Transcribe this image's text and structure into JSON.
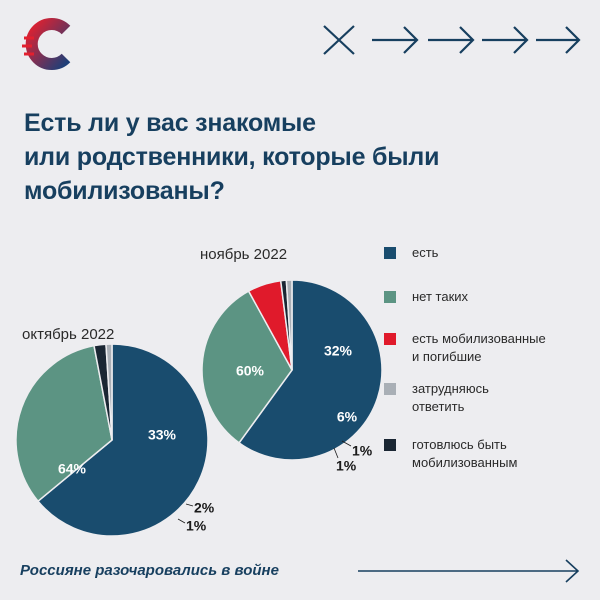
{
  "title_lines": [
    "Есть ли у вас знакомые",
    "или родственники, которые были",
    "мобилизованы?"
  ],
  "footer": {
    "text": "Россияне разочаровались в войне"
  },
  "colors": {
    "yes": "#194c6e",
    "no": "#5c9483",
    "killed": "#e01a2b",
    "unsure": "#a9afb6",
    "preparing": "#1a2633",
    "accent": "#173f5f"
  },
  "icons": [
    "logo-icon",
    "close-cross-icon",
    "arrow-right-icon",
    "long-arrow-right-icon"
  ],
  "legend": [
    {
      "key": "yes",
      "label": "есть"
    },
    {
      "key": "no",
      "label": "нет таких"
    },
    {
      "key": "killed",
      "label": "есть мобилизованные\nи погибшие"
    },
    {
      "key": "unsure",
      "label": "затрудняюсь\nответить"
    },
    {
      "key": "preparing",
      "label": "готовлюсь быть\nмобилизованным"
    }
  ],
  "chart_data": [
    {
      "type": "pie",
      "period": "октябрь 2022",
      "slices": [
        {
          "key": "yes",
          "value": 64,
          "label": "64%"
        },
        {
          "key": "no",
          "value": 33,
          "label": "33%"
        },
        {
          "key": "preparing",
          "value": 2,
          "label": "2%"
        },
        {
          "key": "unsure",
          "value": 1,
          "label": "1%"
        }
      ]
    },
    {
      "type": "pie",
      "period": "ноябрь 2022",
      "slices": [
        {
          "key": "yes",
          "value": 60,
          "label": "60%"
        },
        {
          "key": "no",
          "value": 32,
          "label": "32%"
        },
        {
          "key": "killed",
          "value": 6,
          "label": "6%"
        },
        {
          "key": "preparing",
          "value": 1,
          "label": "1%"
        },
        {
          "key": "unsure",
          "value": 1,
          "label": "1%"
        }
      ]
    }
  ]
}
